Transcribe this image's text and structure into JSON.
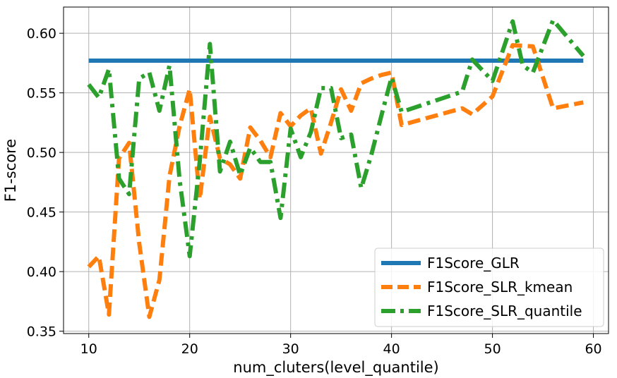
{
  "chart_data": {
    "type": "line",
    "title": "",
    "xlabel": "num_cluters(level_quantile)",
    "ylabel": "F1-score",
    "xlim": [
      7.5,
      61.5
    ],
    "ylim": [
      0.348,
      0.622
    ],
    "x_ticks": [
      10,
      20,
      30,
      40,
      50,
      60
    ],
    "x_tick_labels": [
      "10",
      "20",
      "30",
      "40",
      "50",
      "60"
    ],
    "y_ticks": [
      0.35,
      0.4,
      0.45,
      0.5,
      0.55,
      0.6
    ],
    "y_tick_labels": [
      "0.35",
      "0.40",
      "0.45",
      "0.50",
      "0.55",
      "0.60"
    ],
    "grid": true,
    "legend_position": "bottom-right",
    "series": [
      {
        "name": "F1Score_GLR",
        "color": "#1f77b4",
        "style": "solid",
        "x": [
          10,
          59
        ],
        "y": [
          0.577,
          0.577
        ]
      },
      {
        "name": "F1Score_SLR_kmean",
        "color": "#ff7f0e",
        "style": "dashed",
        "x": [
          10,
          11,
          12,
          13,
          14,
          15,
          16,
          17,
          18,
          19,
          20,
          21,
          22,
          23,
          24,
          25,
          26,
          27,
          28,
          29,
          30,
          31,
          32,
          33,
          34,
          35,
          36,
          37,
          38,
          39,
          40,
          41,
          47,
          48,
          50,
          52,
          54,
          56,
          59
        ],
        "y": [
          0.404,
          0.413,
          0.364,
          0.495,
          0.508,
          0.424,
          0.362,
          0.393,
          0.48,
          0.522,
          0.553,
          0.461,
          0.53,
          0.495,
          0.49,
          0.478,
          0.521,
          0.51,
          0.496,
          0.533,
          0.522,
          0.531,
          0.537,
          0.499,
          0.525,
          0.553,
          0.535,
          0.558,
          0.562,
          0.565,
          0.567,
          0.523,
          0.537,
          0.532,
          0.547,
          0.59,
          0.589,
          0.537,
          0.542
        ]
      },
      {
        "name": "F1Score_SLR_quantile",
        "color": "#2ca02c",
        "style": "dashdot",
        "x": [
          10,
          11,
          12,
          13,
          14,
          15,
          16,
          17,
          18,
          19,
          20,
          21,
          22,
          23,
          24,
          25,
          26,
          27,
          28,
          29,
          30,
          31,
          32,
          33,
          34,
          35,
          36,
          37,
          38,
          39,
          40,
          41,
          47,
          48,
          50,
          52,
          53,
          54,
          56,
          59
        ],
        "y": [
          0.557,
          0.546,
          0.57,
          0.478,
          0.465,
          0.562,
          0.567,
          0.535,
          0.573,
          0.477,
          0.413,
          0.493,
          0.591,
          0.484,
          0.509,
          0.481,
          0.504,
          0.492,
          0.492,
          0.445,
          0.52,
          0.496,
          0.517,
          0.554,
          0.554,
          0.512,
          0.515,
          0.47,
          0.498,
          0.531,
          0.563,
          0.534,
          0.551,
          0.578,
          0.56,
          0.61,
          0.573,
          0.567,
          0.611,
          0.581
        ]
      }
    ]
  }
}
